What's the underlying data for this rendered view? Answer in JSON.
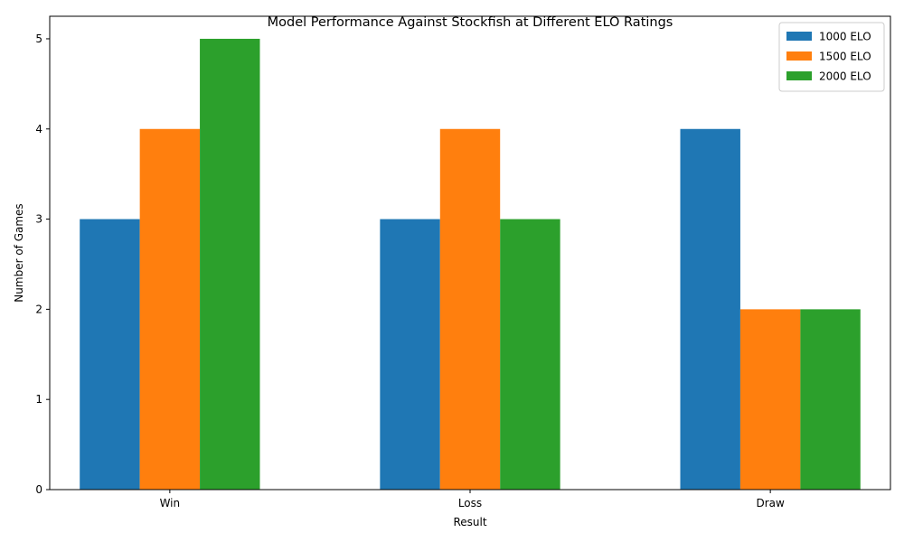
{
  "chart_data": {
    "type": "bar",
    "title": "Model Performance Against Stockfish at Different ELO Ratings",
    "xlabel": "Result",
    "ylabel": "Number of Games",
    "categories": [
      "Win",
      "Loss",
      "Draw"
    ],
    "series": [
      {
        "name": "1000 ELO",
        "color": "#1f77b4",
        "values": [
          3,
          3,
          4
        ]
      },
      {
        "name": "1500 ELO",
        "color": "#ff7f0e",
        "values": [
          4,
          4,
          2
        ]
      },
      {
        "name": "2000 ELO",
        "color": "#2ca02c",
        "values": [
          5,
          3,
          2
        ]
      }
    ],
    "ylim": [
      0,
      5.25
    ],
    "yticks": [
      0,
      1,
      2,
      3,
      4,
      5
    ],
    "grid": false,
    "legend_position": "top-right"
  }
}
